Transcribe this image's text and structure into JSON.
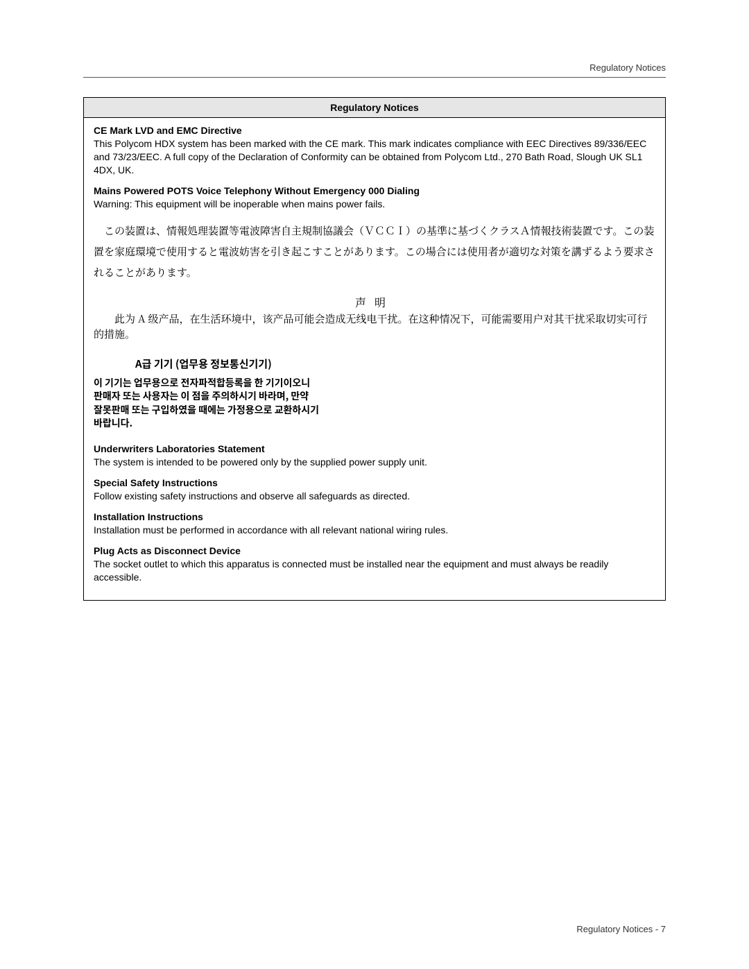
{
  "header": {
    "right": "Regulatory Notices"
  },
  "box": {
    "title": "Regulatory Notices",
    "sections": {
      "ce": {
        "title": "CE Mark LVD and EMC Directive",
        "para": "This Polycom HDX system has been marked with the CE mark. This mark indicates compliance with EEC Directives 89/336/EEC and 73/23/EEC. A full copy of the Declaration of Conformity can be obtained from Polycom Ltd., 270 Bath Road, Slough UK SL1 4DX, UK."
      },
      "mains": {
        "title": "Mains Powered POTS Voice Telephony Without Emergency 000 Dialing",
        "para": "Warning: This equipment will be inoperable when mains power fails."
      },
      "jp": {
        "para": "　この装置は、情報処理装置等電波障害自主規制協議会（ＶＣＣＩ）の基準に基づくクラスＡ情報技術装置です。この装置を家庭環境で使用すると電波妨害を引き起こすことがあります。この場合には使用者が適切な対策を講ずるよう要求されることがあります。"
      },
      "cn": {
        "title": "声明",
        "para": "此为 A 级产品，在生活环境中，该产品可能会造成无线电干扰。在这种情况下，可能需要用户对其干扰采取切实可行的措施。"
      },
      "kr": {
        "title": "A급 기기 (업무용 정보통신기기)",
        "para": "이 기기는 업무용으로 전자파적합등록을 한 기기이오니\n판매자 또는 사용자는 이 점을 주의하시기 바라며, 만약\n잘못판매 또는 구입하였을 때에는 가정용으로 교환하시기\n바랍니다."
      },
      "ul": {
        "title": "Underwriters Laboratories Statement",
        "para": "The system is intended to be powered only by the supplied power supply unit."
      },
      "safety": {
        "title": "Special Safety Instructions",
        "para": "Follow existing safety instructions and observe all safeguards as directed."
      },
      "install": {
        "title": "Installation Instructions",
        "para": "Installation must be performed in accordance with all relevant national wiring rules."
      },
      "plug": {
        "title": "Plug Acts as Disconnect Device",
        "para": "The socket outlet to which this apparatus is connected must be installed near the equipment and must always be readily accessible."
      }
    }
  },
  "footer": {
    "text": "Regulatory Notices - 7"
  }
}
